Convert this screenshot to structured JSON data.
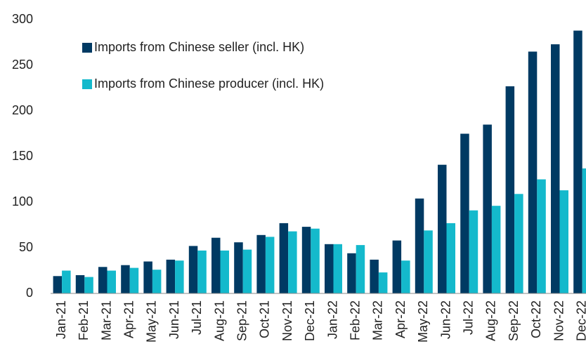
{
  "chart_data": {
    "type": "bar",
    "categories": [
      "Jan-21",
      "Feb-21",
      "Mar-21",
      "Apr-21",
      "May-21",
      "Jun-21",
      "Jul-21",
      "Aug-21",
      "Sep-21",
      "Oct-21",
      "Nov-21",
      "Dec-21",
      "Jan-22",
      "Feb-22",
      "Mar-22",
      "Apr-22",
      "May-22",
      "Jun-22",
      "Jul-22",
      "Aug-22",
      "Sep-22",
      "Oct-22",
      "Nov-22",
      "Dec-22"
    ],
    "series": [
      {
        "name": "Imports from Chinese seller (incl. HK)",
        "color": "#003a63",
        "values": [
          19,
          20,
          29,
          31,
          35,
          37,
          52,
          61,
          56,
          64,
          77,
          73,
          54,
          44,
          37,
          58,
          104,
          141,
          175,
          185,
          227,
          265,
          273,
          288
        ]
      },
      {
        "name": "Imports from Chinese producer (incl. HK)",
        "color": "#14b9cc",
        "values": [
          25,
          18,
          25,
          28,
          26,
          36,
          47,
          47,
          48,
          62,
          68,
          71,
          54,
          53,
          23,
          36,
          69,
          77,
          91,
          96,
          109,
          125,
          113,
          137
        ]
      }
    ],
    "ylim": [
      0,
      300
    ],
    "yticks": [
      0,
      50,
      100,
      150,
      200,
      250,
      300
    ],
    "grid": false,
    "legend": "top-left"
  }
}
